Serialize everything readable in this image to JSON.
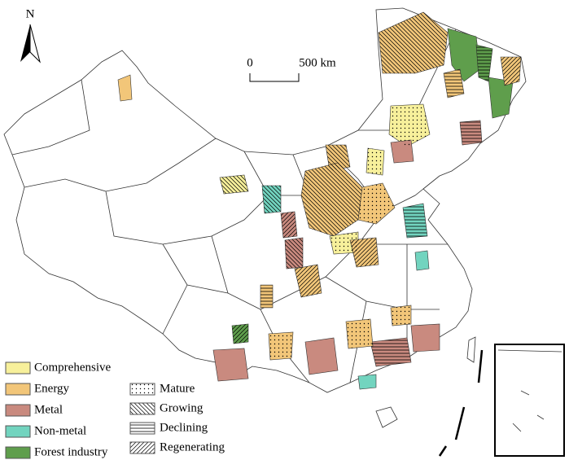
{
  "north": "N",
  "scale_bar": {
    "labels": [
      "0",
      "500 km"
    ]
  },
  "legend": {
    "resource_types": [
      {
        "name": "Comprehensive",
        "color": "#f7f09b"
      },
      {
        "name": "Energy",
        "color": "#f2c679"
      },
      {
        "name": "Metal",
        "color": "#c98a7f"
      },
      {
        "name": "Non-metal",
        "color": "#72d4bf"
      },
      {
        "name": "Forest industry",
        "color": "#5f9e4c"
      }
    ],
    "life_cycle": [
      {
        "name": "Mature",
        "pattern": "dots"
      },
      {
        "name": "Growing",
        "pattern": "backslash"
      },
      {
        "name": "Declining",
        "pattern": "horizontal"
      },
      {
        "name": "Regenerating",
        "pattern": "slash"
      }
    ]
  }
}
